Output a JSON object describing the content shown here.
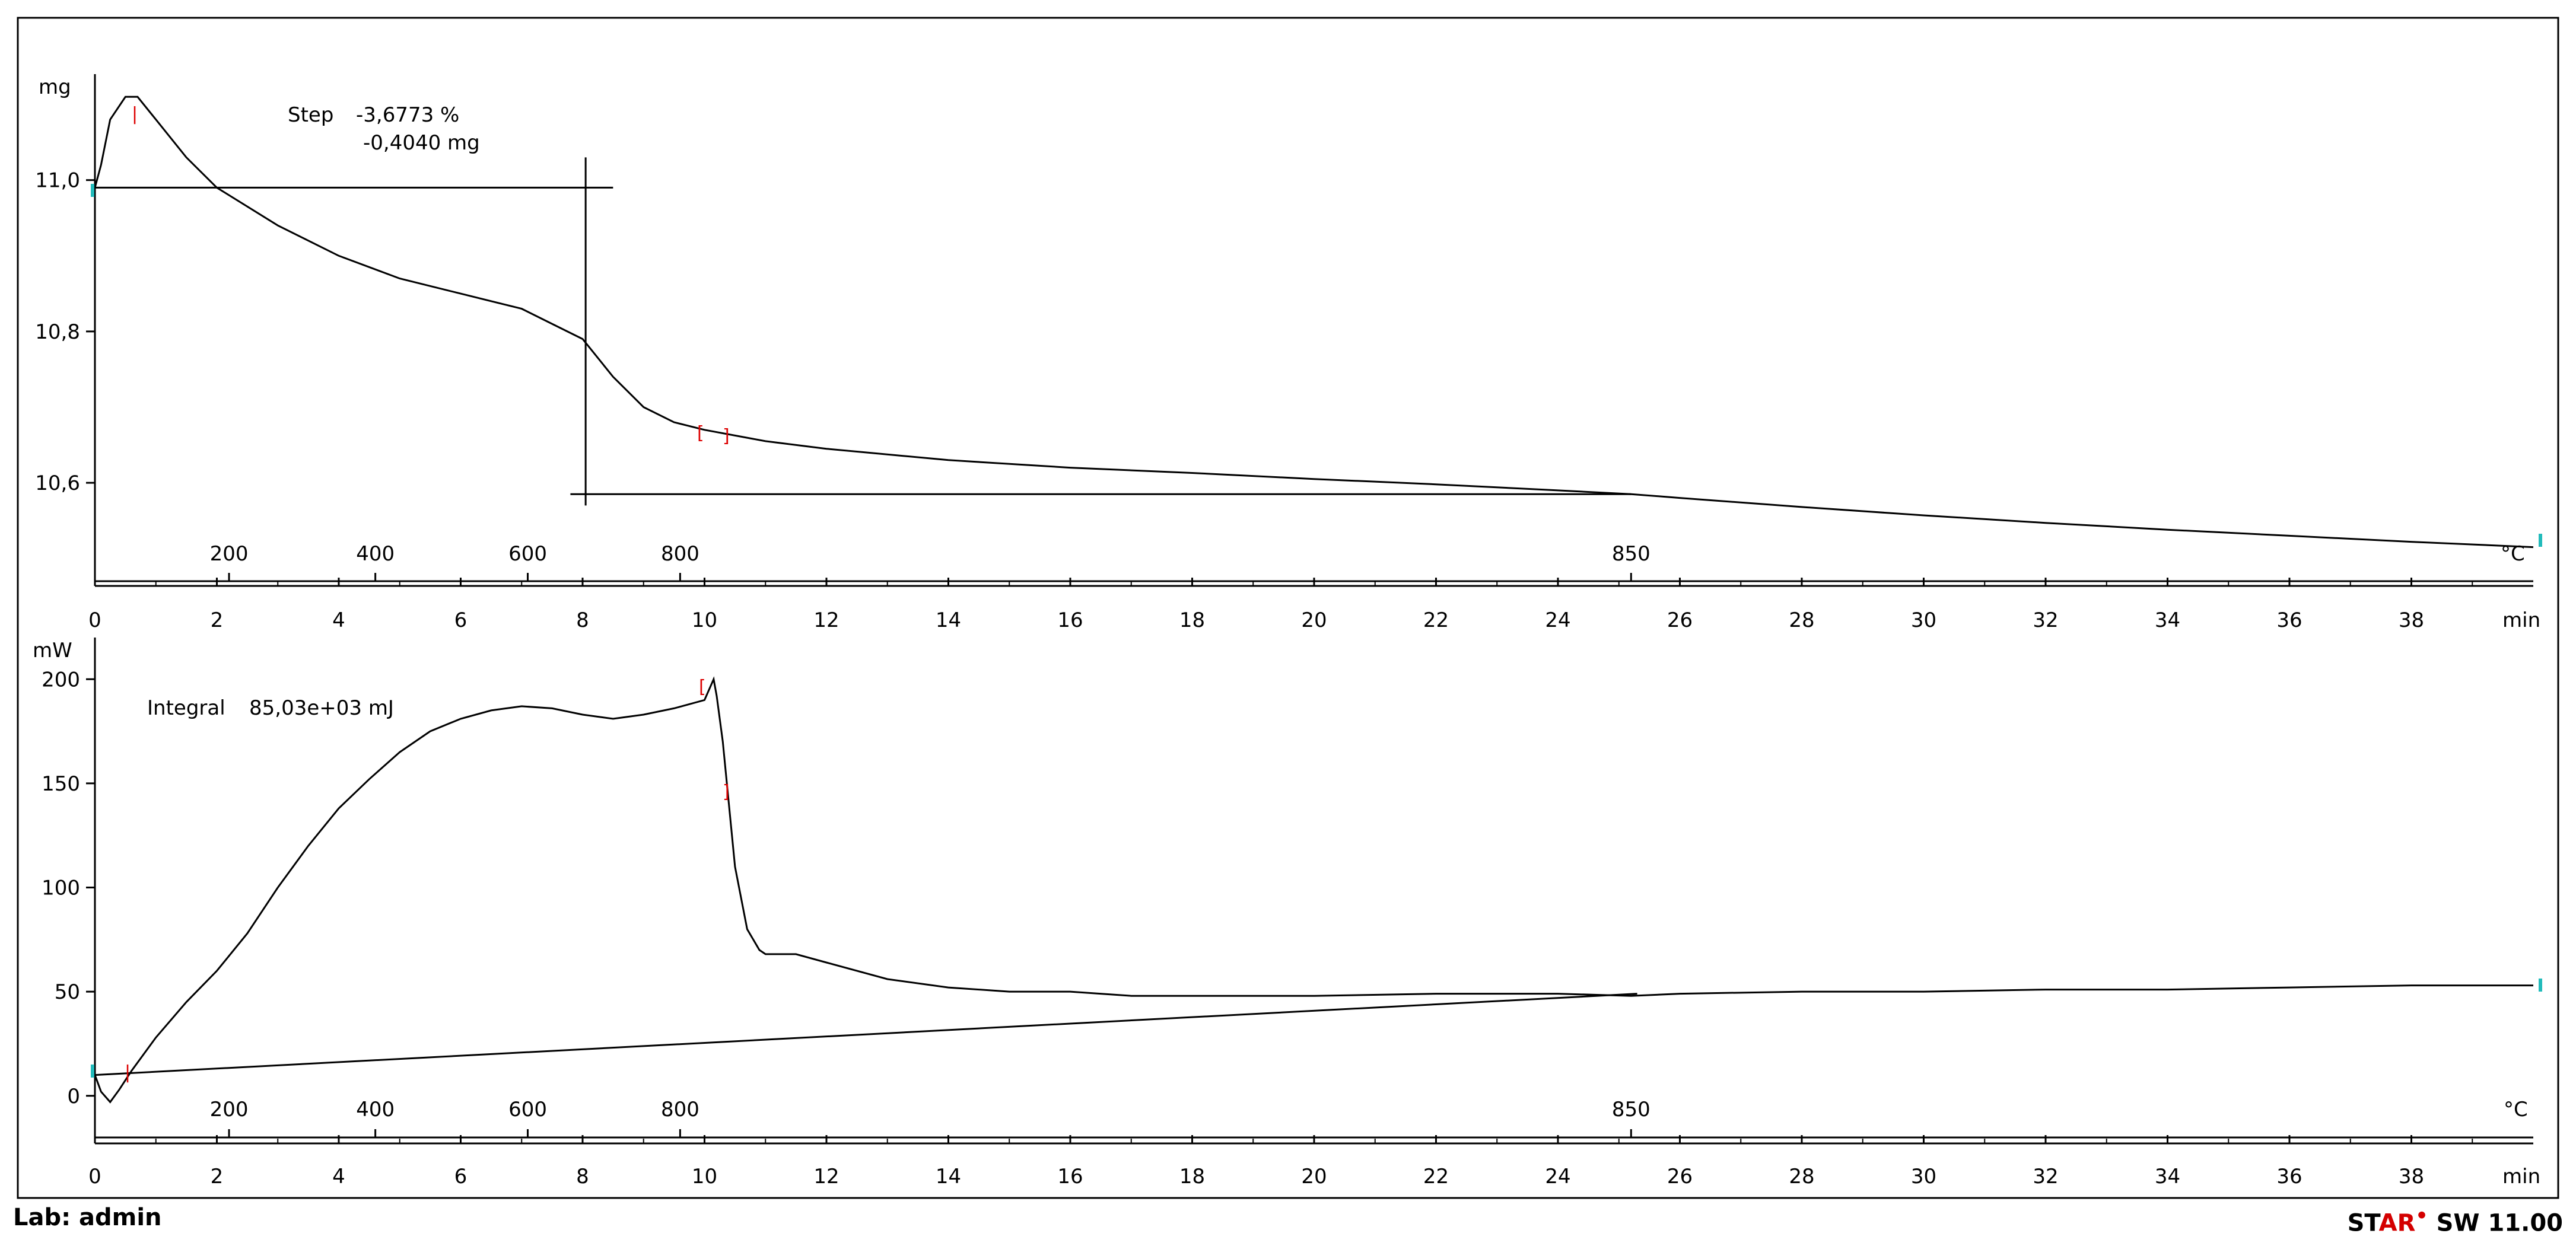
{
  "footer": {
    "lab": "Lab: admin",
    "software_brand_1": "ST",
    "software_brand_2": "AR",
    "software_brand_dot": "•",
    "software_version": " SW 11.00"
  },
  "chart_data": [
    {
      "type": "line",
      "panel": "TGA",
      "ylabel": "mg",
      "ylim": [
        10.47,
        11.14
      ],
      "yticks": [
        10.6,
        10.8,
        11.0
      ],
      "ytick_labels": [
        "10,6",
        "10,8",
        "11,0"
      ],
      "xlabel": "min",
      "xlim": [
        0,
        40
      ],
      "xticks": [
        0,
        2,
        4,
        6,
        8,
        10,
        12,
        14,
        16,
        18,
        20,
        22,
        24,
        26,
        28,
        30,
        32,
        34,
        36,
        38
      ],
      "temp_axis_label": "°C",
      "temp_ticks": [
        {
          "t": 2.2,
          "label": "200"
        },
        {
          "t": 4.6,
          "label": "400"
        },
        {
          "t": 7.1,
          "label": "600"
        },
        {
          "t": 9.6,
          "label": "800"
        },
        {
          "t": 25.2,
          "label": "850"
        }
      ],
      "annotation": {
        "label": "Step",
        "percent": "-3,6773 %",
        "mass": "-0,4040 mg"
      },
      "series": [
        {
          "points": [
            [
              0,
              10.99
            ],
            [
              0.1,
              11.02
            ],
            [
              0.25,
              11.08
            ],
            [
              0.5,
              11.11
            ],
            [
              0.7,
              11.11
            ],
            [
              1.0,
              11.08
            ],
            [
              1.5,
              11.03
            ],
            [
              2,
              10.99
            ],
            [
              3,
              10.94
            ],
            [
              4,
              10.9
            ],
            [
              5,
              10.87
            ],
            [
              6,
              10.85
            ],
            [
              7,
              10.83
            ],
            [
              7.5,
              10.81
            ],
            [
              8,
              10.79
            ],
            [
              8.5,
              10.74
            ],
            [
              9,
              10.7
            ],
            [
              9.5,
              10.68
            ],
            [
              10,
              10.67
            ],
            [
              11,
              10.655
            ],
            [
              12,
              10.645
            ],
            [
              14,
              10.63
            ],
            [
              16,
              10.62
            ],
            [
              18,
              10.613
            ],
            [
              20,
              10.605
            ],
            [
              22,
              10.598
            ],
            [
              24,
              10.59
            ],
            [
              25.2,
              10.585
            ],
            [
              26,
              10.58
            ],
            [
              28,
              10.568
            ],
            [
              30,
              10.557
            ],
            [
              32,
              10.547
            ],
            [
              34,
              10.538
            ],
            [
              36,
              10.53
            ],
            [
              38,
              10.522
            ],
            [
              40,
              10.515
            ]
          ]
        }
      ],
      "baselines": [
        {
          "x": [
            0,
            8.5
          ],
          "y": [
            10.99,
            10.99
          ]
        },
        {
          "x": [
            7.8,
            25.2
          ],
          "y": [
            10.585,
            10.585
          ]
        },
        {
          "x": [
            8.05,
            8.05
          ],
          "y": [
            10.57,
            11.03
          ]
        }
      ]
    },
    {
      "type": "line",
      "panel": "DSC",
      "ylabel": "mW",
      "ylim": [
        -20,
        220
      ],
      "yticks": [
        0,
        50,
        100,
        150,
        200
      ],
      "ytick_labels": [
        "0",
        "50",
        "100",
        "150",
        "200"
      ],
      "xlabel": "min",
      "xlim": [
        0,
        40
      ],
      "xticks": [
        0,
        2,
        4,
        6,
        8,
        10,
        12,
        14,
        16,
        18,
        20,
        22,
        24,
        26,
        28,
        30,
        32,
        34,
        36,
        38
      ],
      "temp_axis_label": "°C",
      "temp_ticks": [
        {
          "t": 2.2,
          "label": "200"
        },
        {
          "t": 4.6,
          "label": "400"
        },
        {
          "t": 7.1,
          "label": "600"
        },
        {
          "t": 9.6,
          "label": "800"
        },
        {
          "t": 25.2,
          "label": "850"
        }
      ],
      "annotation": {
        "label": "Integral",
        "value": "85,03e+03 mJ"
      },
      "series": [
        {
          "points": [
            [
              0,
              10
            ],
            [
              0.1,
              2
            ],
            [
              0.25,
              -3
            ],
            [
              0.4,
              3
            ],
            [
              0.6,
              12
            ],
            [
              1,
              28
            ],
            [
              1.5,
              45
            ],
            [
              2,
              60
            ],
            [
              2.5,
              78
            ],
            [
              3,
              100
            ],
            [
              3.5,
              120
            ],
            [
              4,
              138
            ],
            [
              4.5,
              152
            ],
            [
              5,
              165
            ],
            [
              5.5,
              175
            ],
            [
              6,
              181
            ],
            [
              6.5,
              185
            ],
            [
              7,
              187
            ],
            [
              7.5,
              186
            ],
            [
              8,
              183
            ],
            [
              8.5,
              181
            ],
            [
              9,
              183
            ],
            [
              9.5,
              186
            ],
            [
              10,
              190
            ],
            [
              10.15,
              200
            ],
            [
              10.2,
              192
            ],
            [
              10.3,
              170
            ],
            [
              10.4,
              140
            ],
            [
              10.5,
              110
            ],
            [
              10.7,
              80
            ],
            [
              10.9,
              70
            ],
            [
              11,
              68
            ],
            [
              11.5,
              68
            ],
            [
              12,
              64
            ],
            [
              13,
              56
            ],
            [
              14,
              52
            ],
            [
              15,
              50
            ],
            [
              16,
              50
            ],
            [
              17,
              48
            ],
            [
              18,
              48
            ],
            [
              20,
              48
            ],
            [
              22,
              49
            ],
            [
              24,
              49
            ],
            [
              25.2,
              48
            ],
            [
              26,
              49
            ],
            [
              28,
              50
            ],
            [
              30,
              50
            ],
            [
              32,
              51
            ],
            [
              34,
              51
            ],
            [
              36,
              52
            ],
            [
              38,
              53
            ],
            [
              40,
              53
            ]
          ]
        }
      ],
      "baselines": [
        {
          "x": [
            0,
            25.3
          ],
          "y": [
            10,
            49
          ]
        }
      ]
    }
  ]
}
